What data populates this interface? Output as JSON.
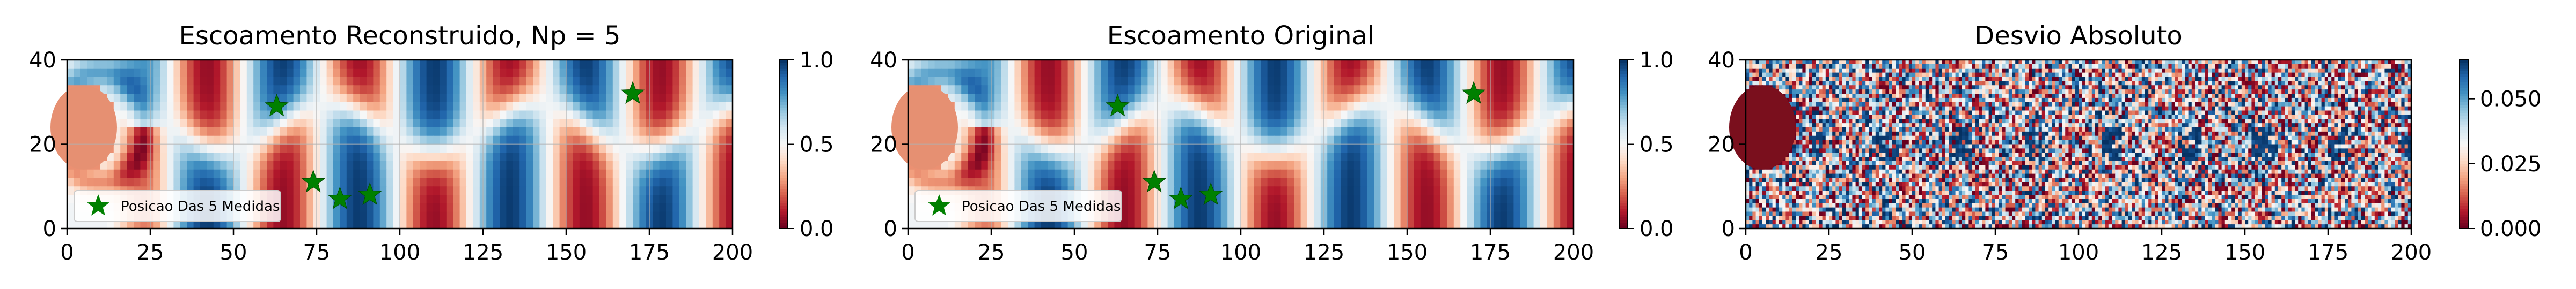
{
  "chart_data": [
    {
      "type": "heatmap",
      "title": "Escoamento Reconstruido, Np = 5",
      "x_ticks": [
        "0",
        "25",
        "50",
        "75",
        "100",
        "125",
        "150",
        "175",
        "200"
      ],
      "y_ticks": [
        "0",
        "20",
        "40"
      ],
      "xlim": [
        0,
        200
      ],
      "ylim": [
        0,
        40
      ],
      "colormap": "RdBu",
      "colorbar": {
        "range": [
          0.0,
          1.0
        ],
        "ticks": [
          "0.0",
          "0.5",
          "1.0"
        ]
      },
      "grid": true,
      "legend": {
        "label": "Posicao Das 5 Medidas",
        "placement": "lower-left"
      },
      "sensors": {
        "x": [
          63,
          74,
          82,
          91,
          170
        ],
        "y": [
          29,
          11,
          7,
          8,
          32
        ]
      },
      "noise": false
    },
    {
      "type": "heatmap",
      "title": "Escoamento Original",
      "x_ticks": [
        "0",
        "25",
        "50",
        "75",
        "100",
        "125",
        "150",
        "175",
        "200"
      ],
      "y_ticks": [
        "0",
        "20",
        "40"
      ],
      "xlim": [
        0,
        200
      ],
      "ylim": [
        0,
        40
      ],
      "colormap": "RdBu",
      "colorbar": {
        "range": [
          0.0,
          1.0
        ],
        "ticks": [
          "0.0",
          "0.5",
          "1.0"
        ]
      },
      "grid": true,
      "legend": {
        "label": "Posicao Das 5 Medidas",
        "placement": "lower-left"
      },
      "sensors": {
        "x": [
          63,
          74,
          82,
          91,
          170
        ],
        "y": [
          29,
          11,
          7,
          8,
          32
        ]
      },
      "noise": false
    },
    {
      "type": "heatmap",
      "title": "Desvio Absoluto",
      "x_ticks": [
        "0",
        "25",
        "50",
        "75",
        "100",
        "125",
        "150",
        "175",
        "200"
      ],
      "y_ticks": [
        "0",
        "20",
        "40"
      ],
      "xlim": [
        0,
        200
      ],
      "ylim": [
        0,
        40
      ],
      "colormap": "RdBu",
      "colorbar": {
        "range": [
          0.0,
          0.065
        ],
        "ticks": [
          "0.000",
          "0.025",
          "0.050"
        ]
      },
      "grid": false,
      "noise": true
    }
  ],
  "colors": {
    "star": "#008000",
    "cylinder": "#e69072",
    "cylinder_dark": "#7a0f1d",
    "colormap_stops": [
      "#67001f",
      "#b2182b",
      "#d6604d",
      "#f4a582",
      "#fddbc7",
      "#f7f7f7",
      "#d1e5f0",
      "#92c5de",
      "#4393c3",
      "#2166ac",
      "#053061"
    ]
  }
}
